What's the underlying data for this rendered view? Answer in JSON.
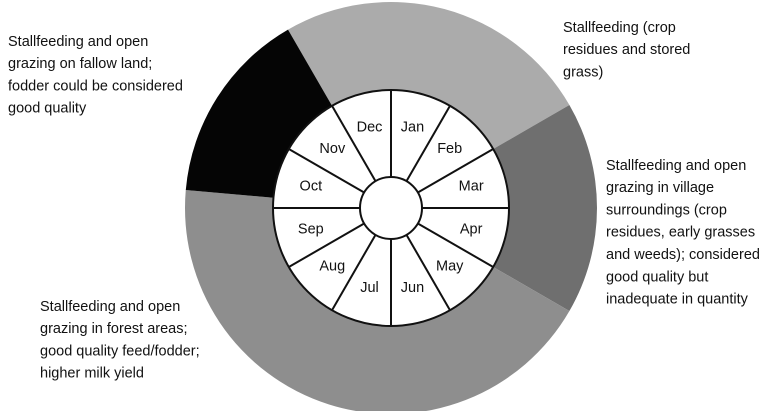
{
  "months": [
    "Jan",
    "Feb",
    "Mar",
    "Apr",
    "May",
    "Jun",
    "Jul",
    "Aug",
    "Sep",
    "Oct",
    "Nov",
    "Dec"
  ],
  "seasons": [
    {
      "lines": [
        "Stallfeeding (crop",
        "residues and stored",
        "grass)"
      ]
    },
    {
      "lines": [
        "Stallfeeding and open",
        "grazing in village",
        "surroundings (crop",
        "residues, early grasses",
        "and weeds); considered",
        "good quality but",
        "inadequate in quantity"
      ]
    },
    {
      "lines": [
        "Stallfeeding and open",
        "grazing in forest areas;",
        "good quality feed/fodder;",
        "higher milk yield"
      ]
    },
    {
      "lines": [
        "Stallfeeding and open",
        "grazing on fallow land;",
        "fodder could be considered",
        "good quality"
      ]
    }
  ]
}
